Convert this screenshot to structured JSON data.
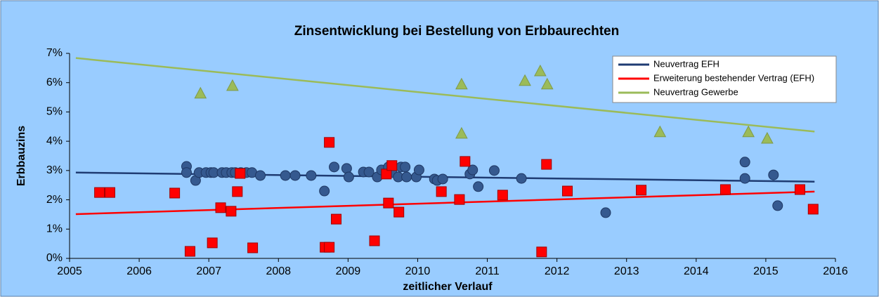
{
  "chart_data": {
    "type": "scatter",
    "title": "Zinsentwicklung  bei Bestellung von Erbbaurechten",
    "xlabel": "zeitlicher Verlauf",
    "ylabel": "Erbbauzins",
    "xlim": [
      2005,
      2016
    ],
    "xticks": [
      2005,
      2006,
      2007,
      2008,
      2009,
      2010,
      2011,
      2012,
      2013,
      2014,
      2015,
      2016
    ],
    "ylim": [
      0,
      7
    ],
    "yticks": [
      {
        "value": 0,
        "label": "0%"
      },
      {
        "value": 1,
        "label": "1%"
      },
      {
        "value": 2,
        "label": "2%"
      },
      {
        "value": 3,
        "label": "3%"
      },
      {
        "value": 4,
        "label": "4%"
      },
      {
        "value": 5,
        "label": "5%"
      },
      {
        "value": 6,
        "label": "6%"
      },
      {
        "value": 7,
        "label": "7%"
      }
    ],
    "grid": false,
    "legend": "top-right",
    "series": [
      {
        "name": "Neuvertrag EFH",
        "color": "#1f3c73",
        "marker": "circle",
        "marker_color": "#35598f",
        "x": [
          2006.68,
          2006.68,
          2006.81,
          2006.86,
          2006.96,
          2007.03,
          2007.07,
          2007.19,
          2007.25,
          2007.33,
          2007.38,
          2007.46,
          2007.54,
          2007.62,
          2007.74,
          2008.1,
          2008.24,
          2008.47,
          2008.66,
          2008.8,
          2008.98,
          2009.01,
          2009.22,
          2009.3,
          2009.42,
          2009.48,
          2009.58,
          2009.63,
          2009.72,
          2009.76,
          2009.82,
          2009.84,
          2009.98,
          2010.02,
          2010.24,
          2010.28,
          2010.36,
          2010.75,
          2010.79,
          2010.87,
          2011.1,
          2011.49,
          2012.7,
          2014.7,
          2014.7,
          2015.11,
          2015.17
        ],
        "y": [
          3.14,
          2.93,
          2.66,
          2.93,
          2.93,
          2.93,
          2.93,
          2.93,
          2.93,
          2.93,
          2.93,
          2.93,
          2.93,
          2.93,
          2.83,
          2.83,
          2.83,
          2.83,
          2.3,
          3.12,
          3.07,
          2.78,
          2.95,
          2.95,
          2.78,
          3.02,
          3.12,
          2.93,
          2.78,
          3.12,
          3.12,
          2.78,
          2.78,
          3.02,
          2.71,
          2.66,
          2.71,
          2.88,
          3.02,
          2.45,
          3.0,
          2.73,
          1.56,
          3.29,
          2.73,
          2.85,
          1.8
        ],
        "trend": {
          "x": [
            2005.09,
            2015.7
          ],
          "y": [
            2.93,
            2.62
          ]
        }
      },
      {
        "name": "Erweiterung bestehender Vertrag (EFH)",
        "color": "#ff0000",
        "marker": "square",
        "marker_color": "#ff0000",
        "x": [
          2005.43,
          2005.58,
          2006.51,
          2006.73,
          2007.05,
          2007.17,
          2007.32,
          2007.41,
          2007.45,
          2007.63,
          2008.67,
          2008.73,
          2008.73,
          2008.83,
          2009.38,
          2009.55,
          2009.58,
          2009.63,
          2009.73,
          2010.34,
          2010.6,
          2010.68,
          2011.22,
          2011.78,
          2011.85,
          2012.15,
          2013.21,
          2014.42,
          2015.49,
          2015.68
        ],
        "y": [
          2.25,
          2.25,
          2.23,
          0.24,
          0.53,
          1.73,
          1.61,
          2.28,
          2.9,
          0.36,
          0.38,
          0.38,
          3.96,
          1.34,
          0.6,
          2.88,
          1.89,
          3.17,
          1.58,
          2.28,
          2.01,
          3.31,
          2.16,
          0.22,
          3.21,
          2.3,
          2.33,
          2.35,
          2.35,
          1.68
        ],
        "trend": {
          "x": [
            2005.09,
            2015.7
          ],
          "y": [
            1.51,
            2.28
          ]
        }
      },
      {
        "name": "Neuvertrag Gewerbe",
        "color": "#9bbb59",
        "marker": "triangle",
        "marker_color": "#9bbb59",
        "x": [
          2006.88,
          2007.34,
          2010.63,
          2010.63,
          2011.54,
          2011.76,
          2011.86,
          2013.48,
          2014.75,
          2015.02
        ],
        "y": [
          5.64,
          5.9,
          5.95,
          4.27,
          6.07,
          6.4,
          5.95,
          4.32,
          4.32,
          4.1
        ],
        "trend": {
          "x": [
            2005.09,
            2015.7
          ],
          "y": [
            6.84,
            4.33
          ]
        }
      }
    ]
  }
}
